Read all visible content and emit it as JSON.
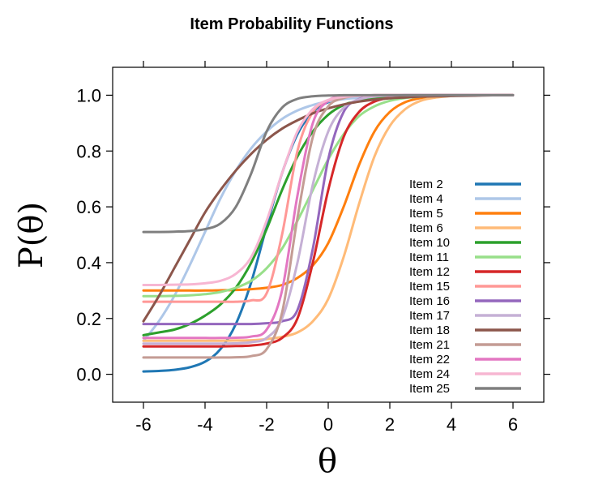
{
  "chart_data": {
    "type": "line",
    "title": "Item Probability Functions",
    "xlabel": "θ",
    "ylabel": "P(θ)",
    "xlim": [
      -7,
      7
    ],
    "ylim": [
      -0.1,
      1.1
    ],
    "xticks": [
      -6,
      -4,
      -2,
      0,
      2,
      4,
      6
    ],
    "xtick_labels": [
      "-6",
      "-4",
      "-2",
      "0",
      "2",
      "4",
      "6"
    ],
    "yticks": [
      0,
      0.2,
      0.4,
      0.6,
      0.8,
      1
    ],
    "ytick_labels": [
      "0.0",
      "0.2",
      "0.4",
      "0.6",
      "0.8",
      "1.0"
    ],
    "grid": false,
    "legend_position": "right",
    "x": [
      -6,
      -5.5,
      -5,
      -4.5,
      -4,
      -3.5,
      -3,
      -2.5,
      -2,
      -1.5,
      -1,
      -0.5,
      0,
      0.5,
      1,
      1.5,
      2,
      2.5,
      3,
      3.5,
      4,
      4.5,
      5,
      5.5,
      6
    ],
    "series": [
      {
        "name": "Item 2",
        "color": "#1f77b4",
        "values": [
          0.01,
          0.012,
          0.016,
          0.025,
          0.045,
          0.09,
          0.18,
          0.33,
          0.53,
          0.72,
          0.86,
          0.94,
          0.975,
          0.99,
          0.996,
          0.998,
          0.999,
          1,
          1,
          1,
          1,
          1,
          1,
          1,
          1
        ]
      },
      {
        "name": "Item 4",
        "color": "#aec7e8",
        "values": [
          0.12,
          0.19,
          0.28,
          0.39,
          0.51,
          0.63,
          0.73,
          0.81,
          0.87,
          0.915,
          0.945,
          0.965,
          0.978,
          0.986,
          0.991,
          0.995,
          0.997,
          0.998,
          0.999,
          1,
          1,
          1,
          1,
          1,
          1
        ]
      },
      {
        "name": "Item 5",
        "color": "#ff7f0e",
        "values": [
          0.3,
          0.3,
          0.3,
          0.3,
          0.3,
          0.301,
          0.302,
          0.305,
          0.31,
          0.32,
          0.345,
          0.39,
          0.47,
          0.6,
          0.75,
          0.87,
          0.94,
          0.975,
          0.99,
          0.996,
          0.998,
          0.999,
          1,
          1,
          1
        ]
      },
      {
        "name": "Item 6",
        "color": "#ffbb78",
        "values": [
          0.12,
          0.12,
          0.12,
          0.12,
          0.12,
          0.12,
          0.121,
          0.122,
          0.126,
          0.134,
          0.15,
          0.19,
          0.27,
          0.42,
          0.61,
          0.78,
          0.89,
          0.95,
          0.98,
          0.992,
          0.997,
          0.999,
          1,
          1,
          1
        ]
      },
      {
        "name": "Item 10",
        "color": "#2ca02c",
        "values": [
          0.14,
          0.15,
          0.16,
          0.18,
          0.21,
          0.25,
          0.31,
          0.4,
          0.52,
          0.66,
          0.78,
          0.87,
          0.93,
          0.965,
          0.982,
          0.991,
          0.996,
          0.998,
          0.999,
          1,
          1,
          1,
          1,
          1,
          1
        ]
      },
      {
        "name": "Item 11",
        "color": "#98df8a",
        "values": [
          0.28,
          0.28,
          0.281,
          0.283,
          0.287,
          0.295,
          0.31,
          0.335,
          0.38,
          0.45,
          0.55,
          0.66,
          0.77,
          0.86,
          0.925,
          0.96,
          0.98,
          0.99,
          0.995,
          0.998,
          0.999,
          1,
          1,
          1,
          1
        ]
      },
      {
        "name": "Item 12",
        "color": "#d62728",
        "values": [
          0.1,
          0.1,
          0.1,
          0.1,
          0.1,
          0.1,
          0.101,
          0.103,
          0.11,
          0.13,
          0.2,
          0.4,
          0.66,
          0.85,
          0.94,
          0.977,
          0.991,
          0.997,
          0.999,
          1,
          1,
          1,
          1,
          1,
          1
        ]
      },
      {
        "name": "Item 15",
        "color": "#ff9896",
        "values": [
          0.26,
          0.26,
          0.26,
          0.26,
          0.26,
          0.26,
          0.26,
          0.265,
          0.29,
          0.5,
          0.8,
          0.94,
          0.98,
          0.995,
          0.999,
          1,
          1,
          1,
          1,
          1,
          1,
          1,
          1,
          1,
          1
        ]
      },
      {
        "name": "Item 16",
        "color": "#9467bd",
        "values": [
          0.18,
          0.18,
          0.18,
          0.18,
          0.18,
          0.18,
          0.18,
          0.18,
          0.183,
          0.19,
          0.23,
          0.45,
          0.77,
          0.94,
          0.986,
          0.997,
          0.999,
          1,
          1,
          1,
          1,
          1,
          1,
          1,
          1
        ]
      },
      {
        "name": "Item 17",
        "color": "#c5b0d5",
        "values": [
          0.11,
          0.11,
          0.11,
          0.11,
          0.11,
          0.11,
          0.111,
          0.115,
          0.13,
          0.2,
          0.4,
          0.68,
          0.87,
          0.955,
          0.985,
          0.995,
          0.998,
          0.999,
          1,
          1,
          1,
          1,
          1,
          1,
          1
        ]
      },
      {
        "name": "Item 18",
        "color": "#8c564b",
        "values": [
          0.19,
          0.28,
          0.38,
          0.48,
          0.58,
          0.66,
          0.73,
          0.79,
          0.84,
          0.88,
          0.91,
          0.935,
          0.953,
          0.967,
          0.977,
          0.984,
          0.989,
          0.992,
          0.995,
          0.996,
          0.997,
          0.998,
          0.999,
          1,
          1
        ]
      },
      {
        "name": "Item 21",
        "color": "#c49c94",
        "values": [
          0.06,
          0.06,
          0.06,
          0.06,
          0.06,
          0.06,
          0.061,
          0.065,
          0.09,
          0.22,
          0.56,
          0.85,
          0.96,
          0.99,
          0.998,
          1,
          1,
          1,
          1,
          1,
          1,
          1,
          1,
          1,
          1
        ]
      },
      {
        "name": "Item 22",
        "color": "#e377c2",
        "values": [
          0.13,
          0.13,
          0.13,
          0.13,
          0.13,
          0.13,
          0.131,
          0.135,
          0.16,
          0.3,
          0.64,
          0.9,
          0.98,
          0.996,
          0.999,
          1,
          1,
          1,
          1,
          1,
          1,
          1,
          1,
          1,
          1
        ]
      },
      {
        "name": "Item 24",
        "color": "#f7b6d2",
        "values": [
          0.32,
          0.32,
          0.321,
          0.322,
          0.326,
          0.335,
          0.36,
          0.42,
          0.55,
          0.72,
          0.87,
          0.95,
          0.983,
          0.994,
          0.998,
          0.999,
          1,
          1,
          1,
          1,
          1,
          1,
          1,
          1,
          1
        ]
      },
      {
        "name": "Item 25",
        "color": "#7f7f7f",
        "values": [
          0.51,
          0.51,
          0.511,
          0.513,
          0.52,
          0.54,
          0.6,
          0.72,
          0.87,
          0.955,
          0.987,
          0.996,
          0.999,
          1,
          1,
          1,
          1,
          1,
          1,
          1,
          1,
          1,
          1,
          1,
          1
        ]
      }
    ]
  }
}
